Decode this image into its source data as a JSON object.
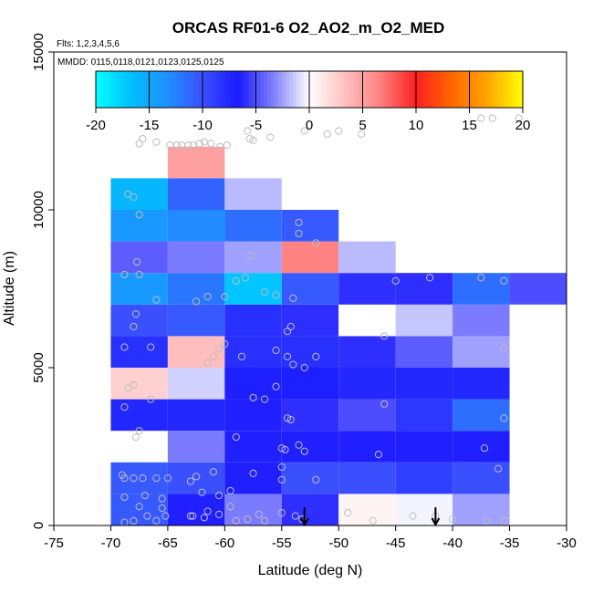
{
  "chart_data": {
    "type": "heatmap",
    "title": "ORCAS RF01-6 O2_AO2_m_O2_MED",
    "annotations": {
      "flights": "Flts: 1,2,3,4,5,6",
      "dates": "MMDD: 0115,0118,0121,0123,0125,0125"
    },
    "xlabel": "Latitude (deg N)",
    "ylabel": "Altitude (m)",
    "xlim": [
      -75,
      -30
    ],
    "ylim": [
      0,
      15000
    ],
    "xticks": [
      -75,
      -70,
      -65,
      -60,
      -55,
      -50,
      -45,
      -40,
      -35,
      -30
    ],
    "yticks": [
      0,
      5000,
      10000,
      15000
    ],
    "colorbar": {
      "min": -20,
      "max": 20,
      "ticks": [
        -20,
        -15,
        -10,
        -5,
        0,
        5,
        10,
        15,
        20
      ],
      "colors": [
        "#00ffff",
        "#00bfff",
        "#1e90ff",
        "#3a50ff",
        "#1a1aff",
        "#8080ff",
        "#ffffff",
        "#ffc0c0",
        "#ff8080",
        "#ff2020",
        "#ff6600",
        "#ffa500",
        "#ffff00"
      ]
    },
    "bin_width_lat": 5,
    "bin_height_alt": 1000,
    "cells": [
      {
        "lat": -70,
        "alt": 0,
        "value": -10.5
      },
      {
        "lat": -65,
        "alt": 0,
        "value": -6.5
      },
      {
        "lat": -60,
        "alt": 0,
        "value": -3.5
      },
      {
        "lat": -55,
        "alt": 0,
        "value": -6
      },
      {
        "lat": -50,
        "alt": 0,
        "value": 0.6
      },
      {
        "lat": -45,
        "alt": 0,
        "value": -0.3
      },
      {
        "lat": -40,
        "alt": 0,
        "value": -2.5
      },
      {
        "lat": -70,
        "alt": 1000,
        "value": -10.5
      },
      {
        "lat": -65,
        "alt": 1000,
        "value": -10
      },
      {
        "lat": -60,
        "alt": 1000,
        "value": -6.5
      },
      {
        "lat": -55,
        "alt": 1000,
        "value": -10
      },
      {
        "lat": -50,
        "alt": 1000,
        "value": -10
      },
      {
        "lat": -45,
        "alt": 1000,
        "value": -9
      },
      {
        "lat": -40,
        "alt": 1000,
        "value": -10
      },
      {
        "lat": -65,
        "alt": 2000,
        "value": -3.5
      },
      {
        "lat": -60,
        "alt": 2000,
        "value": -6.5
      },
      {
        "lat": -55,
        "alt": 2000,
        "value": -6.5
      },
      {
        "lat": -50,
        "alt": 2000,
        "value": -6.5
      },
      {
        "lat": -45,
        "alt": 2000,
        "value": -6.5
      },
      {
        "lat": -40,
        "alt": 2000,
        "value": -6.5
      },
      {
        "lat": -70,
        "alt": 3000,
        "value": -7.5
      },
      {
        "lat": -65,
        "alt": 3000,
        "value": -7.5
      },
      {
        "lat": -60,
        "alt": 3000,
        "value": -6.5
      },
      {
        "lat": -55,
        "alt": 3000,
        "value": -6
      },
      {
        "lat": -50,
        "alt": 3000,
        "value": -5
      },
      {
        "lat": -45,
        "alt": 3000,
        "value": -8.5
      },
      {
        "lat": -40,
        "alt": 3000,
        "value": -11.5
      },
      {
        "lat": -70,
        "alt": 4000,
        "value": 2.5
      },
      {
        "lat": -65,
        "alt": 4000,
        "value": -1.2
      },
      {
        "lat": -60,
        "alt": 4000,
        "value": -7
      },
      {
        "lat": -55,
        "alt": 4000,
        "value": -7
      },
      {
        "lat": -50,
        "alt": 4000,
        "value": -7.5
      },
      {
        "lat": -45,
        "alt": 4000,
        "value": -7.5
      },
      {
        "lat": -40,
        "alt": 4000,
        "value": -7.5
      },
      {
        "lat": -70,
        "alt": 5000,
        "value": -8
      },
      {
        "lat": -65,
        "alt": 5000,
        "value": 3.5
      },
      {
        "lat": -60,
        "alt": 5000,
        "value": -8
      },
      {
        "lat": -55,
        "alt": 5000,
        "value": -8
      },
      {
        "lat": -50,
        "alt": 5000,
        "value": -6
      },
      {
        "lat": -45,
        "alt": 5000,
        "value": -4.5
      },
      {
        "lat": -40,
        "alt": 5000,
        "value": -2.5
      },
      {
        "lat": -70,
        "alt": 6000,
        "value": -10
      },
      {
        "lat": -65,
        "alt": 6000,
        "value": -10.5
      },
      {
        "lat": -60,
        "alt": 6000,
        "value": -8
      },
      {
        "lat": -55,
        "alt": 6000,
        "value": -6
      },
      {
        "lat": -50,
        "alt": 6000,
        "value": 0
      },
      {
        "lat": -45,
        "alt": 6000,
        "value": -1.5
      },
      {
        "lat": -40,
        "alt": 6000,
        "value": -3.5
      },
      {
        "lat": -70,
        "alt": 7000,
        "value": -14
      },
      {
        "lat": -65,
        "alt": 7000,
        "value": -12
      },
      {
        "lat": -60,
        "alt": 7000,
        "value": -17
      },
      {
        "lat": -55,
        "alt": 7000,
        "value": -10.5
      },
      {
        "lat": -50,
        "alt": 7000,
        "value": -6
      },
      {
        "lat": -45,
        "alt": 7000,
        "value": -6
      },
      {
        "lat": -40,
        "alt": 7000,
        "value": -11.5
      },
      {
        "lat": -35,
        "alt": 7000,
        "value": -5
      },
      {
        "lat": -70,
        "alt": 8000,
        "value": -4.5
      },
      {
        "lat": -65,
        "alt": 8000,
        "value": -3.5
      },
      {
        "lat": -60,
        "alt": 8000,
        "value": -2.5
      },
      {
        "lat": -55,
        "alt": 8000,
        "value": 6.5
      },
      {
        "lat": -50,
        "alt": 8000,
        "value": -1.8
      },
      {
        "lat": -70,
        "alt": 9000,
        "value": -14
      },
      {
        "lat": -65,
        "alt": 9000,
        "value": -13
      },
      {
        "lat": -60,
        "alt": 9000,
        "value": -11.5
      },
      {
        "lat": -55,
        "alt": 9000,
        "value": -10.5
      },
      {
        "lat": -70,
        "alt": 10000,
        "value": -16
      },
      {
        "lat": -65,
        "alt": 10000,
        "value": -11
      },
      {
        "lat": -60,
        "alt": 10000,
        "value": -1.8
      },
      {
        "lat": -65,
        "alt": 11000,
        "value": 5
      }
    ],
    "observations": {
      "marker": "open circle",
      "points": [
        [
          -67.5,
          12100
        ],
        [
          -67.2,
          12250
        ],
        [
          -66,
          12150
        ],
        [
          -64.8,
          12050
        ],
        [
          -64.2,
          12050
        ],
        [
          -63.8,
          12050
        ],
        [
          -63.2,
          12050
        ],
        [
          -62.8,
          12050
        ],
        [
          -62.2,
          12100
        ],
        [
          -61.8,
          12150
        ],
        [
          -61.2,
          12100
        ],
        [
          -60.4,
          12000
        ],
        [
          -59.8,
          12050
        ],
        [
          -58,
          12500
        ],
        [
          -57.8,
          12250
        ],
        [
          -57.5,
          12200
        ],
        [
          -56,
          12300
        ],
        [
          -53,
          12500
        ],
        [
          -51,
          12400
        ],
        [
          -50,
          12500
        ],
        [
          -48,
          12400
        ],
        [
          -37.5,
          12900
        ],
        [
          -36.5,
          12900
        ],
        [
          -34.2,
          12900
        ],
        [
          -68.5,
          10500
        ],
        [
          -68,
          10400
        ],
        [
          -67.5,
          9850
        ],
        [
          -53.5,
          9600
        ],
        [
          -53.5,
          9250
        ],
        [
          -52,
          8950
        ],
        [
          -57.7,
          8550
        ],
        [
          -67.7,
          8350
        ],
        [
          -68.8,
          7950
        ],
        [
          -67.5,
          7950
        ],
        [
          -66,
          7150
        ],
        [
          -62.5,
          7100
        ],
        [
          -61.5,
          7250
        ],
        [
          -60,
          7250
        ],
        [
          -59,
          7750
        ],
        [
          -58.2,
          7850
        ],
        [
          -56.5,
          7400
        ],
        [
          -55.5,
          7300
        ],
        [
          -54,
          7200
        ],
        [
          -45,
          7750
        ],
        [
          -42,
          7850
        ],
        [
          -37.5,
          7850
        ],
        [
          -35.5,
          7750
        ],
        [
          -67.8,
          6700
        ],
        [
          -68,
          6300
        ],
        [
          -54.2,
          6300
        ],
        [
          -54.5,
          6150
        ],
        [
          -46,
          6000
        ],
        [
          -68.8,
          5650
        ],
        [
          -66.5,
          5650
        ],
        [
          -60.5,
          5600
        ],
        [
          -60,
          5750
        ],
        [
          -61,
          5350
        ],
        [
          -61.5,
          5150
        ],
        [
          -58.5,
          5350
        ],
        [
          -55.5,
          5550
        ],
        [
          -54.5,
          5350
        ],
        [
          -54,
          5100
        ],
        [
          -53,
          5000
        ],
        [
          -52,
          5350
        ],
        [
          -35.5,
          5600
        ],
        [
          -68,
          4450
        ],
        [
          -68.5,
          4350
        ],
        [
          -66.5,
          4000
        ],
        [
          -57.5,
          4050
        ],
        [
          -56.5,
          4000
        ],
        [
          -55.5,
          4400
        ],
        [
          -68.8,
          3750
        ],
        [
          -54.5,
          3400
        ],
        [
          -54.2,
          3350
        ],
        [
          -46,
          3850
        ],
        [
          -35.5,
          3400
        ],
        [
          -67.5,
          3000
        ],
        [
          -67.8,
          2800
        ],
        [
          -59,
          2800
        ],
        [
          -55,
          2450
        ],
        [
          -54.7,
          2400
        ],
        [
          -53.5,
          2550
        ],
        [
          -53,
          2350
        ],
        [
          -46.5,
          2250
        ],
        [
          -37.2,
          2450
        ],
        [
          -36,
          1800
        ],
        [
          -69,
          1600
        ],
        [
          -68.8,
          1500
        ],
        [
          -68,
          1500
        ],
        [
          -67.2,
          1500
        ],
        [
          -66,
          1500
        ],
        [
          -65,
          1500
        ],
        [
          -62.5,
          1550
        ],
        [
          -63,
          1400
        ],
        [
          -61,
          1700
        ],
        [
          -57.5,
          1650
        ],
        [
          -55,
          1850
        ],
        [
          -55,
          1450
        ],
        [
          -52,
          1450
        ],
        [
          -62,
          1050
        ],
        [
          -68.8,
          900
        ],
        [
          -67,
          950
        ],
        [
          -65.5,
          850
        ],
        [
          -60.5,
          950
        ],
        [
          -59.5,
          1100
        ],
        [
          -65.5,
          550
        ],
        [
          -61.5,
          450
        ],
        [
          -63,
          300
        ],
        [
          -60.5,
          350
        ],
        [
          -59.5,
          600
        ],
        [
          -59,
          150
        ],
        [
          -58,
          200
        ],
        [
          -57,
          350
        ],
        [
          -56.5,
          150
        ],
        [
          -55,
          400
        ],
        [
          -53.8,
          300
        ],
        [
          -53.2,
          200
        ],
        [
          -49.2,
          400
        ],
        [
          -47,
          150
        ],
        [
          -43.5,
          300
        ],
        [
          -41.5,
          300
        ],
        [
          -40,
          200
        ],
        [
          -37,
          150
        ],
        [
          -35.5,
          150
        ],
        [
          -68.8,
          100
        ],
        [
          -68,
          150
        ],
        [
          -66,
          150
        ],
        [
          -67.5,
          600
        ],
        [
          -66.8,
          300
        ],
        [
          -65.2,
          300
        ],
        [
          -61.8,
          250
        ],
        [
          -62.8,
          300
        ]
      ]
    },
    "markers": {
      "type": "arrow-down",
      "x_values": [
        -53,
        -41.5
      ]
    }
  }
}
